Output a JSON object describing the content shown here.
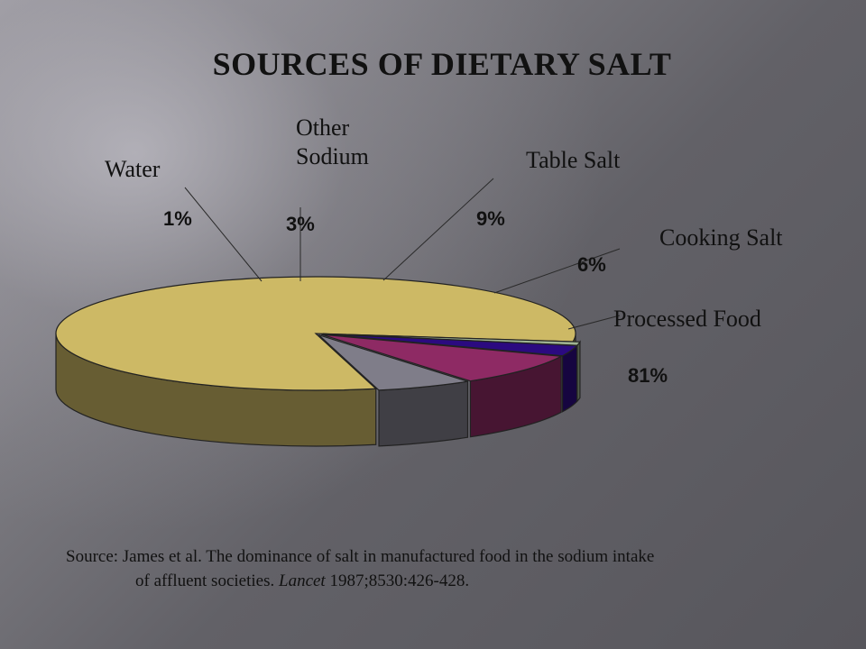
{
  "chart_data": {
    "type": "pie",
    "title": "SOURCES OF DIETARY SALT",
    "style": "3d-exploded",
    "slices": [
      {
        "label": "Processed Food",
        "value": 81,
        "value_label": "81%",
        "color": "#cdb965"
      },
      {
        "label": "Water",
        "value": 1,
        "value_label": "1%",
        "color": "#9fb392"
      },
      {
        "label": "Other Sodium",
        "value": 3,
        "value_label": "3%",
        "color": "#2b0a80"
      },
      {
        "label": "Table Salt",
        "value": 9,
        "value_label": "9%",
        "color": "#8e2a64"
      },
      {
        "label": "Cooking Salt",
        "value": 6,
        "value_label": "6%",
        "color": "#7f7d89"
      }
    ]
  },
  "source": {
    "line1": "Source: James et al. The dominance of salt in manufactured food in the sodium intake",
    "line2_pre": "of affluent societies. ",
    "journal": "Lancet",
    "line2_post": " 1987;8530:426-428."
  }
}
